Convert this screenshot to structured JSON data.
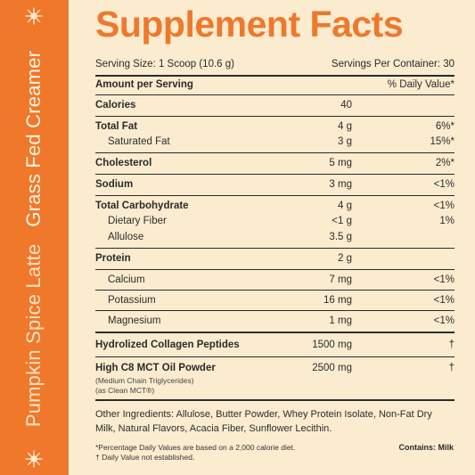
{
  "sidebar": {
    "product_flavor": "Pumpkin Spice Latte",
    "product_name": "Grass Fed Creamer",
    "icon": "sparkle-icon",
    "accent_color": "#f0782b"
  },
  "panel": {
    "title": "Supplement Facts",
    "serving_size": "Serving Size: 1 Scoop (10.6 g)",
    "servings_per_container": "Servings Per Container: 30",
    "amount_header": "Amount per Serving",
    "dv_header": "% Daily Value*",
    "rows": [
      {
        "name": "Calories",
        "amount": "40",
        "dv": ""
      },
      {
        "name": "Total Fat",
        "amount": "4 g",
        "dv": "6%*"
      },
      {
        "name": "Saturated Fat",
        "amount": "3 g",
        "dv": "15%*"
      },
      {
        "name": "Cholesterol",
        "amount": "5 mg",
        "dv": "2%*"
      },
      {
        "name": "Sodium",
        "amount": "3 mg",
        "dv": "<1%"
      },
      {
        "name": "Total Carbohydrate",
        "amount": "4 g",
        "dv": "<1%"
      },
      {
        "name": "Dietary Fiber",
        "amount": "<1 g",
        "dv": "1%"
      },
      {
        "name": "Allulose",
        "amount": "3.5 g",
        "dv": ""
      },
      {
        "name": "Protein",
        "amount": "2 g",
        "dv": ""
      },
      {
        "name": "Calcium",
        "amount": "7 mg",
        "dv": "<1%"
      },
      {
        "name": "Potassium",
        "amount": "16 mg",
        "dv": "<1%"
      },
      {
        "name": "Magnesium",
        "amount": "1 mg",
        "dv": "<1%"
      },
      {
        "name": "Hydrolized Collagen Peptides",
        "amount": "1500 mg",
        "dv": "†"
      },
      {
        "name": "High C8 MCT Oil Powder",
        "amount": "2500 mg",
        "dv": "†"
      }
    ],
    "mct_note_1": "(Medium Chain Triglycerides)",
    "mct_note_2": "(as Clean MCT®)",
    "ingredients": "Other Ingredients: Allulose, Butter Powder, Whey Protein Isolate, Non-Fat Dry Milk, Natural Flavors, Acacia Fiber, Sunflower Lecithin.",
    "footnote_1": "*Percentage Daily Values are based on a 2,000 calorie diet.",
    "footnote_2": "† Daily Value not established.",
    "contains": "Contains: Milk"
  }
}
